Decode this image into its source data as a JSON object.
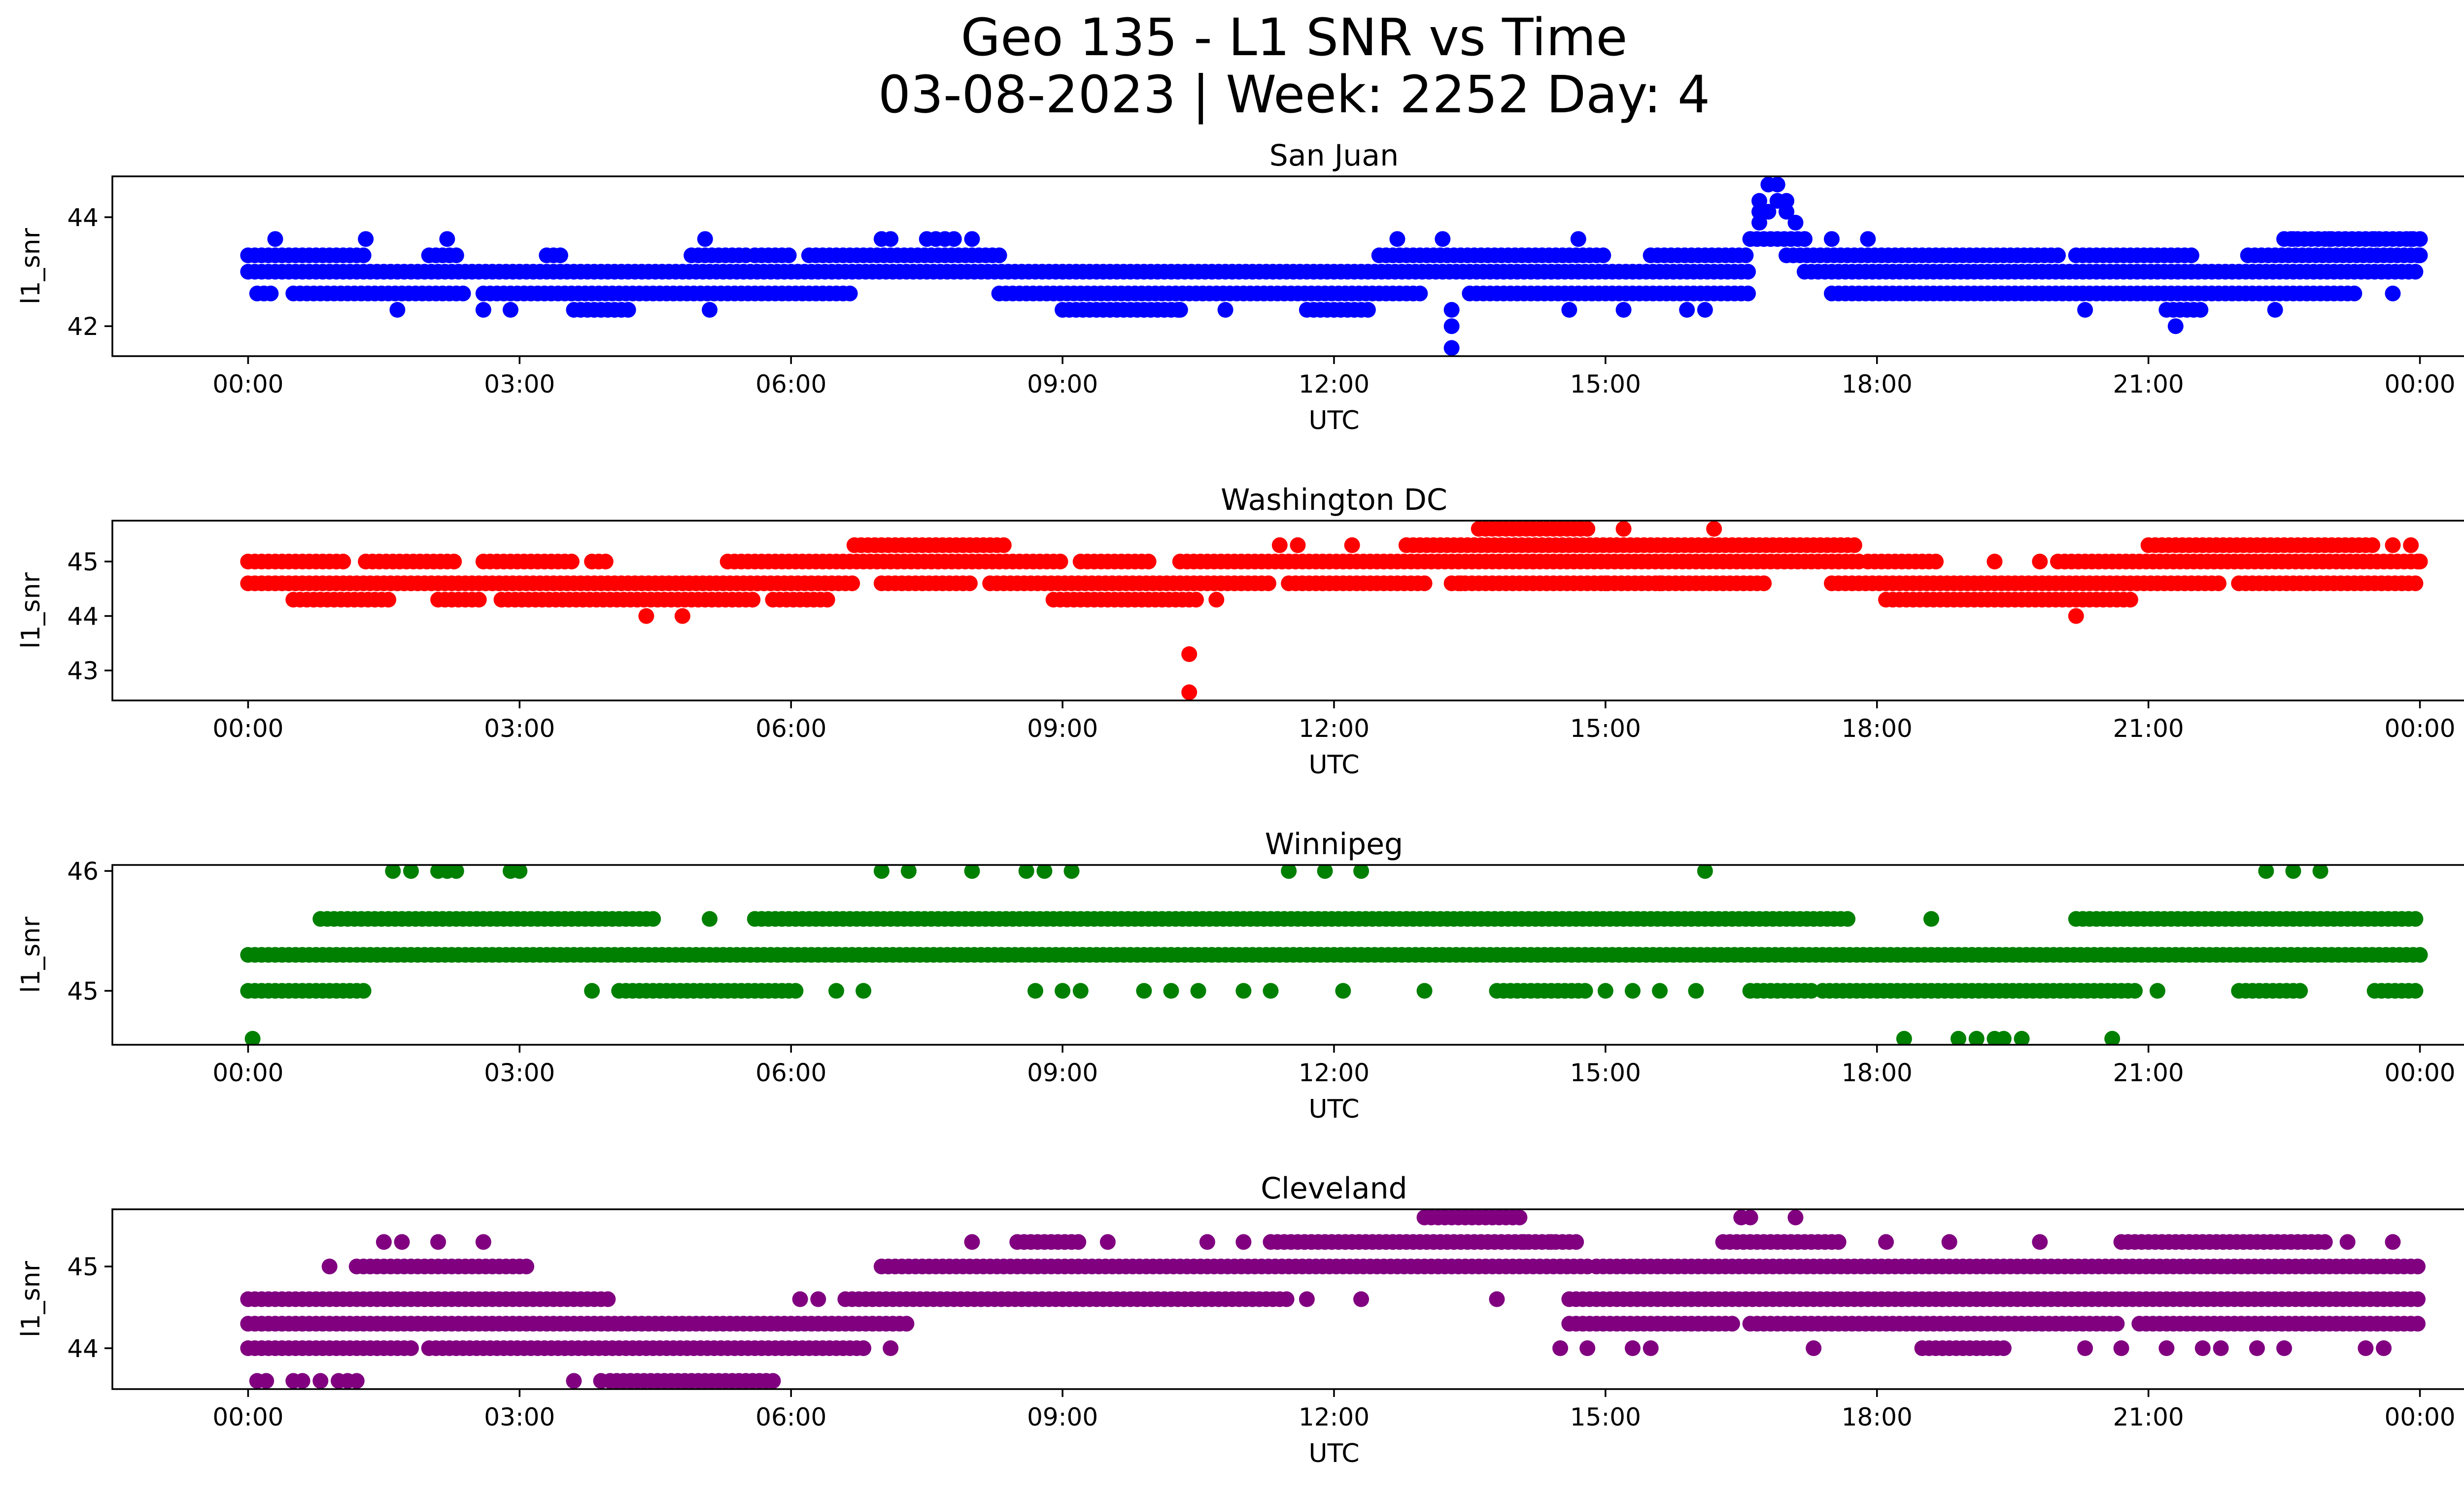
{
  "figure": {
    "title_line1": "Geo 135 - L1 SNR vs Time",
    "title_line2": "03-08-2023 | Week: 2252 Day: 4"
  },
  "chart_data": [
    {
      "type": "scatter",
      "title": "San Juan",
      "xlabel": "UTC",
      "ylabel": "l1_snr",
      "color": "#0000ff",
      "xlim_hours": [
        -1.5,
        25.5
      ],
      "ylim": [
        41.45,
        44.75
      ],
      "yticks": [
        42,
        44
      ],
      "xticks_hours": [
        0,
        3,
        6,
        9,
        12,
        15,
        18,
        21,
        24
      ],
      "xtick_labels": [
        "00:00",
        "03:00",
        "06:00",
        "09:00",
        "12:00",
        "15:00",
        "18:00",
        "21:00",
        "00:00"
      ],
      "base_levels": [
        43.0,
        43.3
      ],
      "bands": [
        {
          "level": 43.0,
          "start_h": 0.0,
          "end_h": 16.6
        },
        {
          "level": 43.3,
          "start_h": 0.0,
          "end_h": 1.3
        },
        {
          "level": 43.3,
          "start_h": 2.0,
          "end_h": 2.3
        },
        {
          "level": 43.3,
          "start_h": 3.3,
          "end_h": 3.5
        },
        {
          "level": 43.3,
          "start_h": 4.9,
          "end_h": 5.5
        },
        {
          "level": 43.3,
          "start_h": 5.6,
          "end_h": 6.0
        },
        {
          "level": 43.3,
          "start_h": 6.2,
          "end_h": 8.3
        },
        {
          "level": 43.3,
          "start_h": 12.5,
          "end_h": 15.0
        },
        {
          "level": 43.3,
          "start_h": 15.5,
          "end_h": 16.6
        },
        {
          "level": 42.6,
          "start_h": 0.1,
          "end_h": 0.3
        },
        {
          "level": 42.6,
          "start_h": 0.5,
          "end_h": 2.4
        },
        {
          "level": 42.6,
          "start_h": 2.6,
          "end_h": 6.7
        },
        {
          "level": 42.6,
          "start_h": 8.3,
          "end_h": 13.0
        },
        {
          "level": 42.6,
          "start_h": 13.5,
          "end_h": 16.6
        },
        {
          "level": 42.3,
          "start_h": 9.0,
          "end_h": 10.3
        },
        {
          "level": 42.3,
          "start_h": 11.7,
          "end_h": 12.4
        },
        {
          "level": 42.3,
          "start_h": 3.6,
          "end_h": 4.2
        },
        {
          "level": 43.6,
          "start_h": 16.6,
          "end_h": 17.2
        },
        {
          "level": 43.0,
          "start_h": 17.2,
          "end_h": 24.0
        },
        {
          "level": 43.3,
          "start_h": 17.0,
          "end_h": 20.0
        },
        {
          "level": 43.3,
          "start_h": 20.2,
          "end_h": 21.5
        },
        {
          "level": 43.3,
          "start_h": 22.1,
          "end_h": 24.0
        },
        {
          "level": 42.6,
          "start_h": 17.5,
          "end_h": 23.3
        },
        {
          "level": 43.6,
          "start_h": 22.5,
          "end_h": 24.0
        },
        {
          "level": 42.3,
          "start_h": 21.2,
          "end_h": 21.6
        }
      ],
      "points": [
        [
          0.3,
          43.6
        ],
        [
          1.3,
          43.6
        ],
        [
          1.65,
          42.3
        ],
        [
          2.2,
          43.6
        ],
        [
          2.6,
          42.3
        ],
        [
          2.9,
          42.3
        ],
        [
          5.05,
          43.6
        ],
        [
          5.1,
          42.3
        ],
        [
          7.0,
          43.6
        ],
        [
          7.1,
          43.6
        ],
        [
          7.5,
          43.6
        ],
        [
          7.6,
          43.6
        ],
        [
          7.7,
          43.6
        ],
        [
          7.8,
          43.6
        ],
        [
          8.0,
          43.6
        ],
        [
          10.3,
          42.3
        ],
        [
          10.8,
          42.3
        ],
        [
          13.2,
          43.6
        ],
        [
          13.3,
          42.3
        ],
        [
          13.3,
          42.0
        ],
        [
          13.3,
          41.6
        ],
        [
          12.7,
          43.6
        ],
        [
          14.7,
          43.6
        ],
        [
          14.6,
          42.3
        ],
        [
          15.2,
          42.3
        ],
        [
          15.9,
          42.3
        ],
        [
          16.1,
          42.3
        ],
        [
          16.7,
          43.9
        ],
        [
          16.7,
          44.1
        ],
        [
          16.7,
          44.3
        ],
        [
          16.8,
          44.6
        ],
        [
          16.9,
          44.6
        ],
        [
          17.0,
          44.3
        ],
        [
          16.9,
          44.3
        ],
        [
          16.8,
          44.1
        ],
        [
          17.0,
          44.1
        ],
        [
          17.1,
          43.9
        ],
        [
          16.6,
          43.6
        ],
        [
          17.2,
          43.6
        ],
        [
          17.5,
          43.6
        ],
        [
          17.9,
          43.6
        ],
        [
          20.3,
          42.3
        ],
        [
          21.3,
          42.0
        ],
        [
          22.4,
          42.3
        ],
        [
          22.6,
          43.6
        ],
        [
          23.0,
          43.6
        ],
        [
          23.5,
          43.6
        ],
        [
          23.7,
          42.6
        ],
        [
          23.9,
          43.6
        ],
        [
          24.0,
          43.3
        ]
      ]
    },
    {
      "type": "scatter",
      "title": "Washington DC",
      "xlabel": "UTC",
      "ylabel": "l1_snr",
      "color": "#ff0000",
      "xlim_hours": [
        -1.5,
        25.5
      ],
      "ylim": [
        42.45,
        45.75
      ],
      "yticks": [
        43,
        44,
        45
      ],
      "xticks_hours": [
        0,
        3,
        6,
        9,
        12,
        15,
        18,
        21,
        24
      ],
      "xtick_labels": [
        "00:00",
        "03:00",
        "06:00",
        "09:00",
        "12:00",
        "15:00",
        "18:00",
        "21:00",
        "00:00"
      ],
      "bands": [
        {
          "level": 45.0,
          "start_h": 0.0,
          "end_h": 1.1
        },
        {
          "level": 45.0,
          "start_h": 1.3,
          "end_h": 2.3
        },
        {
          "level": 45.0,
          "start_h": 2.6,
          "end_h": 3.6
        },
        {
          "level": 45.0,
          "start_h": 3.8,
          "end_h": 4.0
        },
        {
          "level": 45.0,
          "start_h": 5.3,
          "end_h": 9.0
        },
        {
          "level": 45.0,
          "start_h": 9.2,
          "end_h": 10.0
        },
        {
          "level": 45.0,
          "start_h": 10.3,
          "end_h": 17.8
        },
        {
          "level": 45.0,
          "start_h": 17.9,
          "end_h": 18.7
        },
        {
          "level": 45.0,
          "start_h": 20.0,
          "end_h": 24.0
        },
        {
          "level": 44.6,
          "start_h": 0.0,
          "end_h": 6.7
        },
        {
          "level": 44.6,
          "start_h": 7.0,
          "end_h": 8.0
        },
        {
          "level": 44.6,
          "start_h": 8.2,
          "end_h": 11.3
        },
        {
          "level": 44.6,
          "start_h": 11.5,
          "end_h": 13.0
        },
        {
          "level": 44.6,
          "start_h": 13.3,
          "end_h": 16.8
        },
        {
          "level": 44.6,
          "start_h": 17.5,
          "end_h": 21.8
        },
        {
          "level": 44.6,
          "start_h": 22.0,
          "end_h": 24.0
        },
        {
          "level": 44.3,
          "start_h": 0.5,
          "end_h": 1.6
        },
        {
          "level": 44.3,
          "start_h": 2.1,
          "end_h": 2.6
        },
        {
          "level": 44.3,
          "start_h": 2.8,
          "end_h": 5.6
        },
        {
          "level": 44.3,
          "start_h": 5.8,
          "end_h": 6.4
        },
        {
          "level": 44.3,
          "start_h": 8.9,
          "end_h": 10.5
        },
        {
          "level": 44.3,
          "start_h": 18.1,
          "end_h": 20.8
        },
        {
          "level": 45.3,
          "start_h": 6.7,
          "end_h": 8.4
        },
        {
          "level": 45.3,
          "start_h": 12.8,
          "end_h": 17.8
        },
        {
          "level": 45.3,
          "start_h": 21.0,
          "end_h": 23.5
        },
        {
          "level": 45.6,
          "start_h": 13.6,
          "end_h": 14.8
        }
      ],
      "points": [
        [
          4.4,
          44.0
        ],
        [
          4.8,
          44.0
        ],
        [
          10.4,
          43.3
        ],
        [
          10.4,
          42.6
        ],
        [
          10.7,
          44.3
        ],
        [
          11.4,
          45.3
        ],
        [
          11.6,
          45.3
        ],
        [
          12.2,
          45.3
        ],
        [
          13.4,
          44.6
        ],
        [
          14.2,
          45.0
        ],
        [
          15.2,
          45.6
        ],
        [
          16.2,
          45.6
        ],
        [
          15.0,
          44.6
        ],
        [
          15.6,
          44.6
        ],
        [
          19.3,
          45.0
        ],
        [
          20.2,
          44.0
        ],
        [
          19.8,
          45.0
        ],
        [
          23.7,
          45.3
        ],
        [
          23.9,
          45.3
        ],
        [
          24.0,
          45.0
        ]
      ]
    },
    {
      "type": "scatter",
      "title": "Winnipeg",
      "xlabel": "UTC",
      "ylabel": "l1_snr",
      "color": "#008000",
      "xlim_hours": [
        -1.5,
        25.5
      ],
      "ylim": [
        44.55,
        46.05
      ],
      "yticks": [
        45,
        46
      ],
      "xticks_hours": [
        0,
        3,
        6,
        9,
        12,
        15,
        18,
        21,
        24
      ],
      "xtick_labels": [
        "00:00",
        "03:00",
        "06:00",
        "09:00",
        "12:00",
        "15:00",
        "18:00",
        "21:00",
        "00:00"
      ],
      "bands": [
        {
          "level": 45.3,
          "start_h": 0.0,
          "end_h": 24.0
        },
        {
          "level": 45.6,
          "start_h": 0.8,
          "end_h": 4.5
        },
        {
          "level": 45.6,
          "start_h": 5.6,
          "end_h": 17.7
        },
        {
          "level": 45.6,
          "start_h": 20.2,
          "end_h": 24.0
        },
        {
          "level": 45.0,
          "start_h": 0.0,
          "end_h": 1.3
        },
        {
          "level": 45.0,
          "start_h": 4.1,
          "end_h": 6.1
        },
        {
          "level": 45.0,
          "start_h": 13.8,
          "end_h": 14.8
        },
        {
          "level": 45.0,
          "start_h": 16.6,
          "end_h": 17.3
        },
        {
          "level": 45.0,
          "start_h": 17.4,
          "end_h": 20.9
        },
        {
          "level": 45.0,
          "start_h": 22.0,
          "end_h": 22.7
        },
        {
          "level": 45.0,
          "start_h": 23.5,
          "end_h": 24.0
        }
      ],
      "points": [
        [
          0.05,
          44.6
        ],
        [
          1.6,
          46.0
        ],
        [
          1.8,
          46.0
        ],
        [
          2.1,
          46.0
        ],
        [
          2.2,
          46.0
        ],
        [
          2.3,
          46.0
        ],
        [
          2.9,
          46.0
        ],
        [
          3.0,
          46.0
        ],
        [
          3.8,
          45.0
        ],
        [
          5.1,
          45.6
        ],
        [
          6.5,
          45.0
        ],
        [
          6.8,
          45.0
        ],
        [
          7.0,
          46.0
        ],
        [
          7.3,
          46.0
        ],
        [
          8.0,
          46.0
        ],
        [
          8.6,
          46.0
        ],
        [
          8.8,
          46.0
        ],
        [
          9.1,
          46.0
        ],
        [
          8.7,
          45.0
        ],
        [
          9.0,
          45.0
        ],
        [
          9.2,
          45.0
        ],
        [
          9.9,
          45.0
        ],
        [
          10.2,
          45.0
        ],
        [
          10.5,
          45.0
        ],
        [
          11.0,
          45.0
        ],
        [
          11.3,
          45.0
        ],
        [
          11.5,
          46.0
        ],
        [
          11.9,
          46.0
        ],
        [
          12.3,
          46.0
        ],
        [
          12.1,
          45.0
        ],
        [
          13.0,
          45.0
        ],
        [
          15.0,
          45.0
        ],
        [
          15.3,
          45.0
        ],
        [
          15.6,
          45.0
        ],
        [
          16.0,
          45.0
        ],
        [
          16.1,
          46.0
        ],
        [
          18.3,
          44.6
        ],
        [
          18.6,
          45.6
        ],
        [
          18.9,
          44.6
        ],
        [
          19.1,
          44.6
        ],
        [
          19.3,
          44.6
        ],
        [
          19.4,
          44.6
        ],
        [
          19.6,
          44.6
        ],
        [
          20.6,
          44.6
        ],
        [
          21.1,
          45.0
        ],
        [
          22.3,
          46.0
        ],
        [
          22.6,
          46.0
        ],
        [
          22.9,
          46.0
        ]
      ]
    },
    {
      "type": "scatter",
      "title": "Cleveland",
      "xlabel": "UTC",
      "ylabel": "l1_snr",
      "color": "#800080",
      "xlim_hours": [
        -1.5,
        25.5
      ],
      "ylim": [
        43.5,
        45.7
      ],
      "yticks": [
        44,
        45
      ],
      "xticks_hours": [
        0,
        3,
        6,
        9,
        12,
        15,
        18,
        21,
        24
      ],
      "xtick_labels": [
        "00:00",
        "03:00",
        "06:00",
        "09:00",
        "12:00",
        "15:00",
        "18:00",
        "21:00",
        "00:00"
      ],
      "bands": [
        {
          "level": 44.6,
          "start_h": 0.0,
          "end_h": 4.0
        },
        {
          "level": 44.3,
          "start_h": 0.0,
          "end_h": 7.3
        },
        {
          "level": 44.0,
          "start_h": 0.0,
          "end_h": 1.8
        },
        {
          "level": 44.0,
          "start_h": 2.0,
          "end_h": 6.8
        },
        {
          "level": 45.0,
          "start_h": 1.2,
          "end_h": 3.1
        },
        {
          "level": 43.6,
          "start_h": 4.0,
          "end_h": 5.8
        },
        {
          "level": 44.6,
          "start_h": 6.6,
          "end_h": 11.5
        },
        {
          "level": 45.0,
          "start_h": 7.0,
          "end_h": 14.8
        },
        {
          "level": 45.0,
          "start_h": 14.9,
          "end_h": 24.0
        },
        {
          "level": 45.3,
          "start_h": 8.5,
          "end_h": 9.2
        },
        {
          "level": 45.3,
          "start_h": 11.3,
          "end_h": 14.7
        },
        {
          "level": 45.3,
          "start_h": 16.3,
          "end_h": 17.6
        },
        {
          "level": 45.3,
          "start_h": 20.7,
          "end_h": 23.0
        },
        {
          "level": 45.6,
          "start_h": 13.0,
          "end_h": 14.1
        },
        {
          "level": 44.6,
          "start_h": 14.6,
          "end_h": 24.0
        },
        {
          "level": 44.3,
          "start_h": 14.6,
          "end_h": 16.4
        },
        {
          "level": 44.3,
          "start_h": 16.6,
          "end_h": 20.7
        },
        {
          "level": 44.3,
          "start_h": 20.9,
          "end_h": 24.0
        },
        {
          "level": 44.0,
          "start_h": 18.5,
          "end_h": 19.4
        }
      ],
      "points": [
        [
          0.1,
          43.6
        ],
        [
          0.2,
          43.6
        ],
        [
          0.5,
          43.6
        ],
        [
          0.6,
          43.6
        ],
        [
          0.8,
          43.6
        ],
        [
          1.0,
          43.6
        ],
        [
          1.1,
          43.6
        ],
        [
          1.2,
          43.6
        ],
        [
          1.5,
          45.3
        ],
        [
          1.7,
          45.3
        ],
        [
          2.6,
          45.3
        ],
        [
          2.1,
          45.3
        ],
        [
          0.9,
          45.0
        ],
        [
          3.6,
          43.6
        ],
        [
          3.9,
          43.6
        ],
        [
          6.1,
          44.6
        ],
        [
          6.3,
          44.6
        ],
        [
          7.1,
          44.0
        ],
        [
          8.0,
          45.3
        ],
        [
          9.5,
          45.3
        ],
        [
          10.6,
          45.3
        ],
        [
          11.0,
          45.3
        ],
        [
          11.7,
          44.6
        ],
        [
          12.3,
          44.6
        ],
        [
          14.1,
          45.3
        ],
        [
          14.4,
          45.3
        ],
        [
          13.8,
          44.6
        ],
        [
          14.5,
          44.0
        ],
        [
          14.8,
          44.0
        ],
        [
          15.3,
          44.0
        ],
        [
          15.5,
          44.0
        ],
        [
          16.5,
          45.6
        ],
        [
          16.6,
          45.6
        ],
        [
          17.1,
          45.6
        ],
        [
          17.3,
          44.0
        ],
        [
          18.1,
          45.3
        ],
        [
          18.8,
          45.3
        ],
        [
          19.8,
          45.3
        ],
        [
          20.3,
          44.0
        ],
        [
          20.7,
          44.0
        ],
        [
          21.2,
          44.0
        ],
        [
          21.6,
          44.0
        ],
        [
          21.8,
          44.0
        ],
        [
          22.2,
          44.0
        ],
        [
          22.5,
          44.0
        ],
        [
          23.2,
          45.3
        ],
        [
          23.7,
          45.3
        ],
        [
          23.4,
          44.0
        ],
        [
          23.6,
          44.0
        ]
      ]
    }
  ]
}
